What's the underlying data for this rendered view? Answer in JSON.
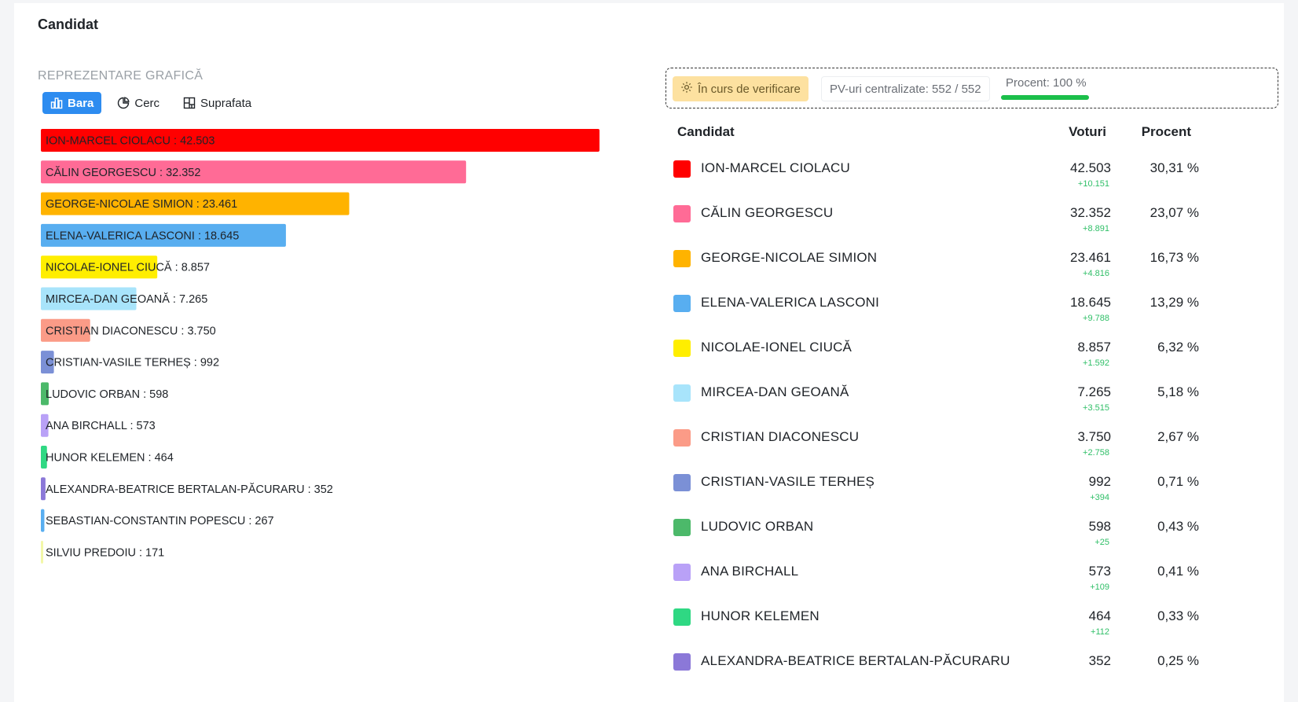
{
  "section_title": "Candidat",
  "subheading": "REPREZENTARE GRAFICĂ",
  "view_options": [
    {
      "label": "Bara",
      "icon": "bar-chart-icon",
      "active": true
    },
    {
      "label": "Cerc",
      "icon": "pie-chart-icon",
      "active": false
    },
    {
      "label": "Suprafata",
      "icon": "treemap-icon",
      "active": false
    }
  ],
  "status": {
    "verify_label": "În curs de verificare",
    "pv_label": "PV-uri centralizate: 552 / 552",
    "percent_label": "Procent: 100 %",
    "progress": 1.0,
    "progress_color": "#1bbf4a"
  },
  "table": {
    "headers": {
      "candidate": "Candidat",
      "votes": "Voturi",
      "percent": "Procent"
    },
    "rows": [
      {
        "name": "ION-MARCEL CIOLACU",
        "votes": "42.503",
        "delta": "+10.151",
        "percent": "30,31 %",
        "color": "#ff0000"
      },
      {
        "name": "CĂLIN GEORGESCU",
        "votes": "32.352",
        "delta": "+8.891",
        "percent": "23,07 %",
        "color": "#ff6b96"
      },
      {
        "name": "GEORGE-NICOLAE SIMION",
        "votes": "23.461",
        "delta": "+4.816",
        "percent": "16,73 %",
        "color": "#ffb300"
      },
      {
        "name": "ELENA-VALERICA LASCONI",
        "votes": "18.645",
        "delta": "+9.788",
        "percent": "13,29 %",
        "color": "#58aef0"
      },
      {
        "name": "NICOLAE-IONEL CIUCĂ",
        "votes": "8.857",
        "delta": "+1.592",
        "percent": "6,32 %",
        "color": "#ffee00"
      },
      {
        "name": "MIRCEA-DAN GEOANĂ",
        "votes": "7.265",
        "delta": "+3.515",
        "percent": "5,18 %",
        "color": "#a8e4fb"
      },
      {
        "name": "CRISTIAN DIACONESCU",
        "votes": "3.750",
        "delta": "+2.758",
        "percent": "2,67 %",
        "color": "#fb9b87"
      },
      {
        "name": "CRISTIAN-VASILE TERHEȘ",
        "votes": "992",
        "delta": "+394",
        "percent": "0,71 %",
        "color": "#7b90d6"
      },
      {
        "name": "LUDOVIC ORBAN",
        "votes": "598",
        "delta": "+25",
        "percent": "0,43 %",
        "color": "#4cb96a"
      },
      {
        "name": "ANA BIRCHALL",
        "votes": "573",
        "delta": "+109",
        "percent": "0,41 %",
        "color": "#b9a1f7"
      },
      {
        "name": "HUNOR KELEMEN",
        "votes": "464",
        "delta": "+112",
        "percent": "0,33 %",
        "color": "#2fd883"
      },
      {
        "name": "ALEXANDRA-BEATRICE BERTALAN-PĂCURARU",
        "votes": "352",
        "delta": "",
        "percent": "0,25 %",
        "color": "#8b78d8"
      }
    ]
  },
  "chart_data": {
    "type": "bar",
    "orientation": "horizontal",
    "categories": [
      "ION-MARCEL CIOLACU",
      "CĂLIN GEORGESCU",
      "GEORGE-NICOLAE SIMION",
      "ELENA-VALERICA LASCONI",
      "NICOLAE-IONEL CIUCĂ",
      "MIRCEA-DAN GEOANĂ",
      "CRISTIAN DIACONESCU",
      "CRISTIAN-VASILE TERHEȘ",
      "LUDOVIC ORBAN",
      "ANA BIRCHALL",
      "HUNOR KELEMEN",
      "ALEXANDRA-BEATRICE BERTALAN-PĂCURARU",
      "SEBASTIAN-CONSTANTIN POPESCU",
      "SILVIU PREDOIU"
    ],
    "values": [
      42503,
      32352,
      23461,
      18645,
      8857,
      7265,
      3750,
      992,
      598,
      573,
      464,
      352,
      267,
      171
    ],
    "labels": [
      "ION-MARCEL CIOLACU : 42.503",
      "CĂLIN GEORGESCU : 32.352",
      "GEORGE-NICOLAE SIMION : 23.461",
      "ELENA-VALERICA LASCONI : 18.645",
      "NICOLAE-IONEL CIUCĂ : 8.857",
      "MIRCEA-DAN GEOANĂ : 7.265",
      "CRISTIAN DIACONESCU : 3.750",
      "CRISTIAN-VASILE TERHEȘ : 992",
      "LUDOVIC ORBAN : 598",
      "ANA BIRCHALL : 573",
      "HUNOR KELEMEN : 464",
      "ALEXANDRA-BEATRICE BERTALAN-PĂCURARU : 352",
      "SEBASTIAN-CONSTANTIN POPESCU : 267",
      "SILVIU PREDOIU : 171"
    ],
    "colors": [
      "#ff0000",
      "#ff6b96",
      "#ffb300",
      "#58aef0",
      "#ffee00",
      "#a8e4fb",
      "#fb9b87",
      "#7b90d6",
      "#4cb96a",
      "#b9a1f7",
      "#2fd883",
      "#8b78d8",
      "#58aef0",
      "#f2f7a8"
    ],
    "xlim": [
      0,
      42503
    ],
    "legend": false,
    "grid": false
  }
}
